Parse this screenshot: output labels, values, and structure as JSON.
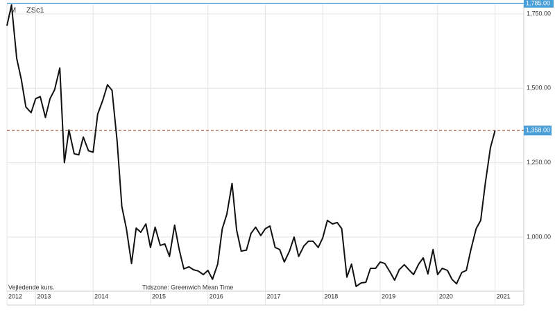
{
  "chart_data": {
    "type": "line",
    "symbol": "ZSc1",
    "interval": "M",
    "note_left": "Vejledende kurs.",
    "note_center": "Tidszone: Greenwich Mean Time",
    "x": [
      2012.5,
      2012.58,
      2012.67,
      2012.75,
      2012.83,
      2012.92,
      2013.0,
      2013.08,
      2013.17,
      2013.25,
      2013.33,
      2013.42,
      2013.5,
      2013.58,
      2013.67,
      2013.75,
      2013.83,
      2013.92,
      2014.0,
      2014.08,
      2014.17,
      2014.25,
      2014.33,
      2014.42,
      2014.5,
      2014.58,
      2014.67,
      2014.75,
      2014.83,
      2014.92,
      2015.0,
      2015.08,
      2015.17,
      2015.25,
      2015.33,
      2015.42,
      2015.5,
      2015.58,
      2015.67,
      2015.75,
      2015.83,
      2015.92,
      2016.0,
      2016.08,
      2016.17,
      2016.25,
      2016.33,
      2016.42,
      2016.5,
      2016.58,
      2016.67,
      2016.75,
      2016.83,
      2016.92,
      2017.0,
      2017.08,
      2017.17,
      2017.25,
      2017.33,
      2017.42,
      2017.5,
      2017.58,
      2017.67,
      2017.75,
      2017.83,
      2017.92,
      2018.0,
      2018.08,
      2018.17,
      2018.25,
      2018.33,
      2018.42,
      2018.5,
      2018.58,
      2018.67,
      2018.75,
      2018.83,
      2018.92,
      2019.0,
      2019.08,
      2019.17,
      2019.25,
      2019.33,
      2019.42,
      2019.5,
      2019.58,
      2019.67,
      2019.75,
      2019.83,
      2019.92,
      2020.0,
      2020.08,
      2020.17,
      2020.25,
      2020.33,
      2020.42,
      2020.5,
      2020.58,
      2020.67,
      2020.75,
      2020.83,
      2020.92,
      2021.0
    ],
    "series": [
      {
        "color": "#111111",
        "values": [
          1710,
          1780,
          1600,
          1530,
          1437,
          1418,
          1465,
          1472,
          1402,
          1465,
          1495,
          1568,
          1250,
          1360,
          1280,
          1276,
          1336,
          1290,
          1285,
          1413,
          1460,
          1512,
          1493,
          1320,
          1103,
          1028,
          911,
          1030,
          1016,
          1044,
          965,
          1033,
          972,
          977,
          935,
          1040,
          958,
          893,
          900,
          890,
          886,
          874,
          888,
          858,
          909,
          1028,
          1077,
          1180,
          1023,
          953,
          956,
          1012,
          1033,
          1005,
          1028,
          1037,
          965,
          958,
          916,
          953,
          1000,
          935,
          970,
          986,
          986,
          965,
          998,
          1056,
          1044,
          1049,
          1028,
          865,
          909,
          834,
          846,
          848,
          895,
          895,
          916,
          911,
          883,
          855,
          890,
          907,
          890,
          874,
          909,
          930,
          876,
          958,
          874,
          895,
          888,
          858,
          843,
          881,
          888,
          958,
          1028,
          1056,
          1180,
          1301,
          1358
        ]
      }
    ],
    "xlim": [
      2012.5,
      2021.5
    ],
    "xticks": [
      {
        "value": 2012.5,
        "label": "2012"
      },
      2013,
      2014,
      2015,
      2016,
      2017,
      2018,
      2019,
      2020,
      2021
    ],
    "ylim": [
      818,
      1785
    ],
    "yticks": [
      {
        "value": 1000,
        "label": "1,000.00"
      },
      {
        "value": 1250,
        "label": "1,250.00"
      },
      {
        "value": 1500,
        "label": "1,500.00"
      },
      {
        "value": 1750,
        "label": "1,750.00"
      }
    ],
    "high": {
      "value": 1785,
      "label": "1,785.00"
    },
    "last_price": {
      "value": 1358,
      "label": "1,358.00"
    },
    "grid": true,
    "accent_color": "#4a9fd8"
  }
}
